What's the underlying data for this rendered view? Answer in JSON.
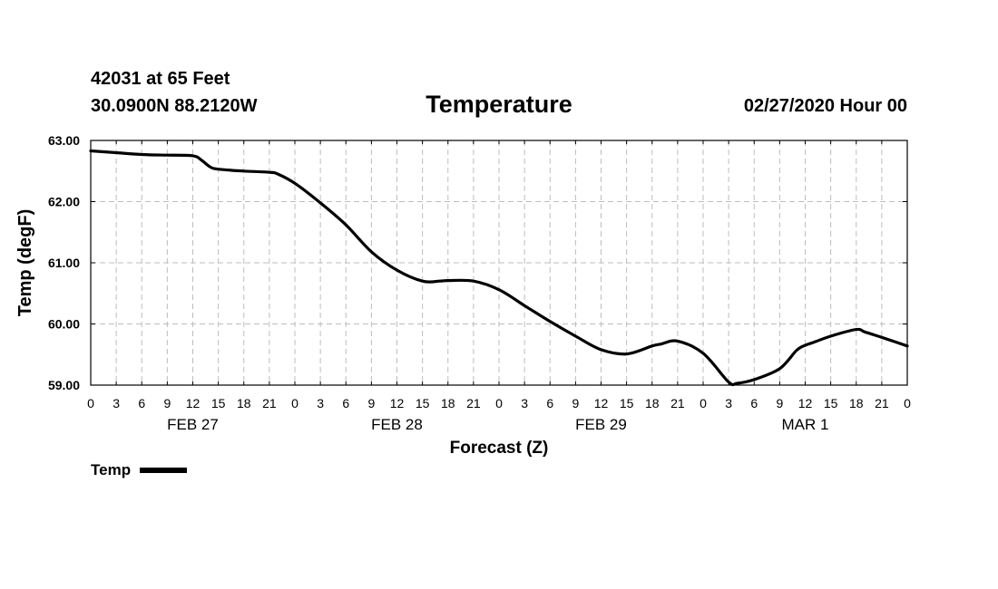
{
  "header": {
    "station": "42031 at 65 Feet",
    "coords": "30.0900N 88.2120W",
    "title": "Temperature",
    "stamp": "02/27/2020 Hour 00"
  },
  "legend": {
    "label": "Temp"
  },
  "chart_data": {
    "type": "line",
    "title": "Temperature",
    "xlabel": "Forecast (Z)",
    "ylabel": "Temp (degF)",
    "ylim": [
      59.0,
      63.0
    ],
    "y_ticks": [
      "59.00",
      "60.00",
      "61.00",
      "62.00",
      "63.00"
    ],
    "x_range_hours": [
      0,
      96
    ],
    "x_tick_step_hours": 3,
    "x_tick_labels": [
      "0",
      "3",
      "6",
      "9",
      "12",
      "15",
      "18",
      "21",
      "0",
      "3",
      "6",
      "9",
      "12",
      "15",
      "18",
      "21",
      "0",
      "3",
      "6",
      "9",
      "12",
      "15",
      "18",
      "21",
      "0",
      "3",
      "6",
      "9",
      "12",
      "15",
      "18",
      "21",
      "0"
    ],
    "day_labels": [
      {
        "label": "FEB 27",
        "hour": 12
      },
      {
        "label": "FEB 28",
        "hour": 36
      },
      {
        "label": "FEB 29",
        "hour": 60
      },
      {
        "label": "MAR 1",
        "hour": 84
      }
    ],
    "grid": true,
    "series": [
      {
        "name": "Temp",
        "x": [
          0,
          3,
          6,
          9,
          12,
          13,
          14,
          15,
          18,
          21,
          22,
          24,
          27,
          30,
          33,
          36,
          39,
          41,
          42,
          45,
          48,
          51,
          54,
          57,
          60,
          63,
          66,
          67,
          69,
          72,
          75,
          76,
          78,
          81,
          83,
          84,
          85,
          87,
          90,
          91,
          93,
          96
        ],
        "values": [
          62.83,
          62.8,
          62.77,
          62.76,
          62.75,
          62.68,
          62.57,
          62.53,
          62.5,
          62.48,
          62.45,
          62.3,
          61.98,
          61.62,
          61.18,
          60.88,
          60.7,
          60.7,
          60.71,
          60.7,
          60.56,
          60.3,
          60.04,
          59.8,
          59.58,
          59.51,
          59.64,
          59.67,
          59.72,
          59.52,
          59.05,
          59.03,
          59.09,
          59.27,
          59.57,
          59.65,
          59.7,
          59.8,
          59.91,
          59.87,
          59.78,
          59.64
        ]
      }
    ]
  }
}
